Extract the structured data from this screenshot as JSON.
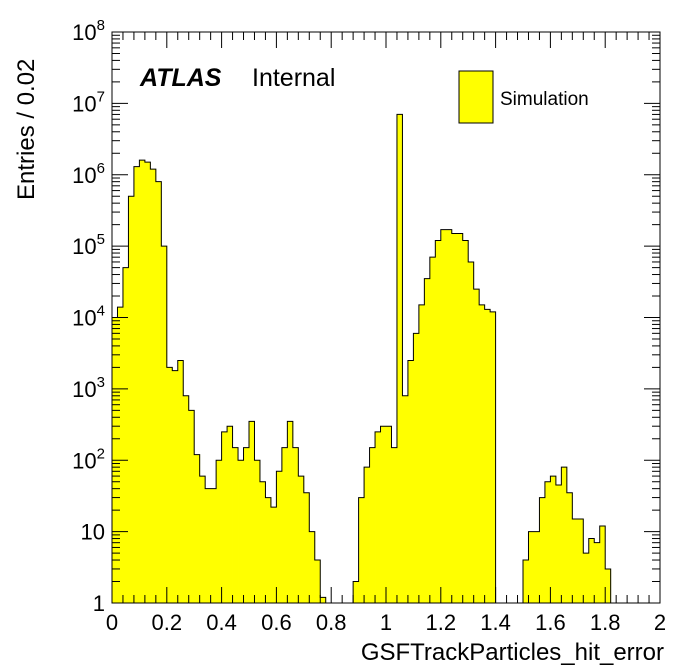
{
  "chart_data": {
    "type": "bar",
    "xlabel": "GSFTrackParticles_hit_error",
    "ylabel": "Entries / 0.02",
    "label_experiment": "ATLAS",
    "label_status": "Internal",
    "xlim": [
      0,
      2
    ],
    "ylim": [
      1,
      100000000
    ],
    "yscale": "log",
    "bin_width": 0.02,
    "fill_color": "#ffff00",
    "line_color": "#000000",
    "x_tick_labels": [
      "0",
      "0.2",
      "0.4",
      "0.6",
      "0.8",
      "1",
      "1.2",
      "1.4",
      "1.6",
      "1.8",
      "2"
    ],
    "y_tick_labels": [
      {
        "base": "1",
        "exp": ""
      },
      {
        "base": "10",
        "exp": ""
      },
      {
        "base": "10",
        "exp": "2"
      },
      {
        "base": "10",
        "exp": "3"
      },
      {
        "base": "10",
        "exp": "4"
      },
      {
        "base": "10",
        "exp": "5"
      },
      {
        "base": "10",
        "exp": "6"
      },
      {
        "base": "10",
        "exp": "7"
      },
      {
        "base": "10",
        "exp": "8"
      }
    ],
    "legend": {
      "label": "Simulation",
      "placement": "top-right"
    },
    "series": [
      {
        "name": "Simulation",
        "values": [
          10000,
          14000,
          50000,
          500000,
          1300000,
          1600000,
          1500000,
          1200000,
          800000,
          100000,
          2000,
          1800,
          2500,
          800,
          500,
          120,
          60,
          40,
          40,
          100,
          250,
          300,
          150,
          100,
          150,
          350,
          100,
          50,
          30,
          22,
          70,
          150,
          350,
          150,
          60,
          35,
          10,
          4,
          1.2,
          1,
          1,
          1,
          1,
          1,
          2,
          30,
          80,
          150,
          250,
          300,
          300,
          150,
          7000000,
          800,
          2500,
          6000,
          15000,
          35000,
          70000,
          120000,
          170000,
          170000,
          150000,
          150000,
          120000,
          60000,
          25000,
          15000,
          13000,
          12000,
          1,
          1,
          1,
          1,
          1,
          4,
          10,
          10,
          30,
          50,
          60,
          45,
          80,
          35,
          15,
          15,
          5,
          8,
          7,
          12,
          3,
          0
        ]
      }
    ]
  }
}
